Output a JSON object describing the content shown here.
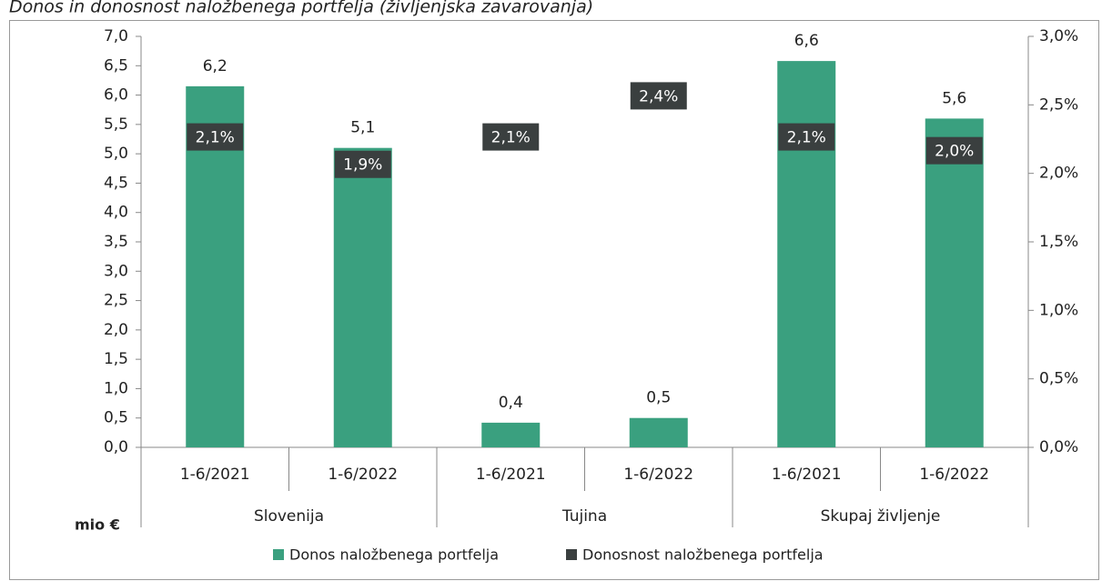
{
  "chart_data": {
    "type": "bar",
    "title": "Donos in donosnost naložbenega portfelja (življenjska zavarovanja)",
    "ylabel": "mio €",
    "categories": [
      "1-6/2021",
      "1-6/2022",
      "1-6/2021",
      "1-6/2022",
      "1-6/2021",
      "1-6/2022"
    ],
    "groups": [
      "Slovenija",
      "Tujina",
      "Skupaj življenje"
    ],
    "series": [
      {
        "name": "Donos naložbenega portfelja",
        "color": "#3aa07f",
        "values": [
          6.15,
          5.1,
          0.42,
          0.5,
          6.58,
          5.6
        ],
        "value_labels": [
          "6,2",
          "5,1",
          "0,4",
          "0,5",
          "6,6",
          "5,6"
        ]
      },
      {
        "name": "Donosnost naložbenega portfelja",
        "color": "#3a3f3f",
        "axis": "y2",
        "values": [
          2.1,
          1.9,
          2.1,
          2.4,
          2.1,
          2.0
        ],
        "value_labels": [
          "2,1%",
          "1,9%",
          "2,1%",
          "2,4%",
          "2,1%",
          "2,0%"
        ]
      }
    ],
    "ylim": [
      0,
      7
    ],
    "yticks": [
      {
        "value": 0,
        "label": "0,0"
      },
      {
        "value": 0.5,
        "label": "0,5"
      },
      {
        "value": 1,
        "label": "1,0"
      },
      {
        "value": 1.5,
        "label": "1,5"
      },
      {
        "value": 2,
        "label": "2,0"
      },
      {
        "value": 2.5,
        "label": "2,5"
      },
      {
        "value": 3,
        "label": "3,0"
      },
      {
        "value": 3.5,
        "label": "3,5"
      },
      {
        "value": 4,
        "label": "4,0"
      },
      {
        "value": 4.5,
        "label": "4,5"
      },
      {
        "value": 5,
        "label": "5,0"
      },
      {
        "value": 5.5,
        "label": "5,5"
      },
      {
        "value": 6,
        "label": "6,0"
      },
      {
        "value": 6.5,
        "label": "6,5"
      },
      {
        "value": 7,
        "label": "7,0"
      }
    ],
    "y2lim": [
      0,
      3
    ],
    "y2ticks": [
      {
        "value": 0,
        "label": "0,0%"
      },
      {
        "value": 0.5,
        "label": "0,5%"
      },
      {
        "value": 1,
        "label": "1,0%"
      },
      {
        "value": 1.5,
        "label": "1,5%"
      },
      {
        "value": 2,
        "label": "2,0%"
      },
      {
        "value": 2.5,
        "label": "2,5%"
      },
      {
        "value": 3,
        "label": "3,0%"
      }
    ],
    "legend": "bottom"
  }
}
